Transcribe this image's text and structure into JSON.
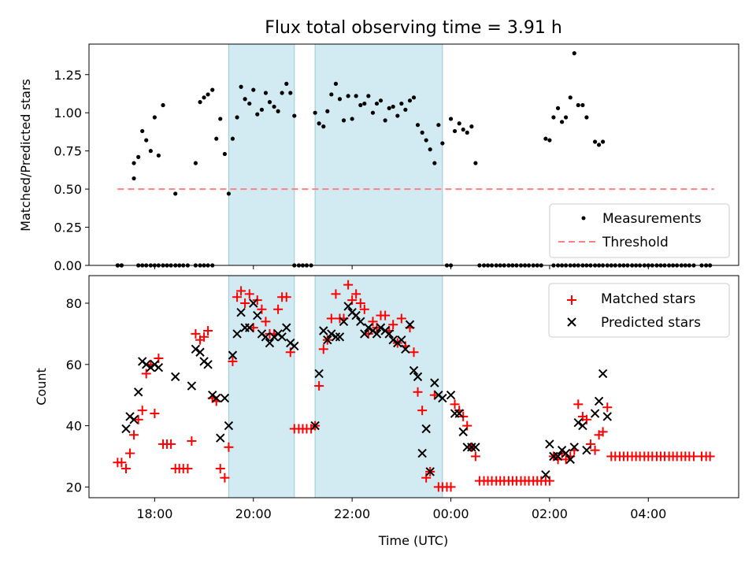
{
  "chart_data": [
    {
      "type": "scatter",
      "title": "Flux total observing time = 3.91 h",
      "xlabel": "",
      "ylabel": "Matched/Predicted stars",
      "xlim": [
        16.67,
        29.83
      ],
      "ylim": [
        0,
        1.45
      ],
      "x_ticks": [
        18,
        20,
        22,
        24,
        26,
        28
      ],
      "y_ticks": [
        0,
        0.25,
        0.5,
        0.75,
        1.0,
        1.25
      ],
      "y_tick_labels": [
        "0.00",
        "0.25",
        "0.50",
        "0.75",
        "1.00",
        "1.25"
      ],
      "shaded_regions": [
        [
          19.5,
          20.83
        ],
        [
          21.25,
          23.83
        ]
      ],
      "shade_color": "#add8e6",
      "threshold": {
        "name": "Threshold",
        "value": 0.5,
        "x_range": [
          17.25,
          29.33
        ],
        "color": "#ff8080"
      },
      "legend": [
        "Measurements",
        "Threshold"
      ],
      "legend_position": "lower-right",
      "series": [
        {
          "name": "Measurements",
          "color": "#000000",
          "x": [
            17.25,
            17.33,
            17.58,
            17.67,
            17.75,
            17.83,
            17.92,
            18.0,
            18.08,
            18.17,
            18.42,
            18.83,
            18.92,
            19.0,
            19.08,
            19.17,
            19.25,
            19.33,
            19.42,
            19.5,
            19.58,
            19.67,
            19.75,
            19.83,
            19.92,
            20.0,
            20.08,
            20.17,
            20.25,
            20.33,
            20.42,
            20.5,
            20.58,
            20.67,
            20.75,
            20.83,
            21.25,
            21.33,
            21.42,
            21.5,
            21.58,
            21.67,
            21.75,
            21.83,
            21.92,
            22.0,
            22.08,
            22.17,
            22.25,
            22.33,
            22.42,
            22.5,
            22.58,
            22.67,
            22.75,
            22.83,
            22.92,
            23.0,
            23.08,
            23.17,
            23.25,
            23.33,
            23.42,
            23.5,
            23.58,
            23.67,
            23.75,
            23.83,
            24.0,
            24.08,
            24.17,
            24.25,
            24.33,
            24.42,
            24.5,
            25.92,
            26.0,
            26.08,
            26.17,
            26.25,
            26.33,
            26.42,
            26.5,
            26.58,
            26.67,
            26.75,
            26.92,
            27.0,
            27.08,
            17.58,
            17.67,
            17.75,
            17.83,
            17.92,
            18.0,
            18.08,
            18.17,
            18.42,
            18.83,
            18.92,
            19.0,
            19.08,
            19.17
          ],
          "y": [
            0,
            0,
            0.67,
            0.71,
            0.88,
            0.82,
            0.75,
            0.97,
            0.72,
            1.05,
            0.47,
            0.67,
            1.07,
            1.1,
            1.12,
            1.15,
            0.83,
            0.96,
            0.73,
            0.47,
            0.83,
            0.97,
            1.17,
            1.09,
            1.06,
            1.15,
            0.99,
            1.02,
            1.13,
            1.07,
            1.04,
            1.01,
            1.13,
            1.19,
            1.13,
            0.98,
            1.0,
            0.93,
            0.91,
            1.01,
            1.12,
            1.19,
            1.09,
            0.95,
            1.11,
            0.96,
            1.11,
            1.05,
            1.06,
            1.11,
            1.0,
            1.06,
            1.08,
            0.95,
            1.03,
            1.04,
            0.98,
            1.06,
            1.02,
            1.08,
            1.1,
            0.92,
            0.87,
            0.82,
            0.76,
            0.67,
            0.92,
            0.8,
            0.96,
            0.88,
            0.93,
            0.89,
            0.87,
            0.91,
            0.67,
            0.83,
            0.82,
            0.97,
            1.03,
            0.94,
            0.97,
            1.1,
            1.39,
            1.05,
            1.05,
            0.97,
            0.81,
            0.79,
            0.81,
            0.57,
            0,
            0,
            0,
            0,
            0,
            0,
            0,
            0,
            0,
            0,
            0,
            0,
            0
          ],
          "zero_points_x": [
            17.25,
            17.33,
            18.25,
            18.33,
            18.5,
            18.58,
            18.67,
            20.83,
            20.92,
            21.0,
            21.08,
            21.17,
            23.92,
            24.0,
            24.58,
            24.67,
            24.75,
            24.83,
            24.92,
            25.0,
            25.08,
            25.17,
            25.25,
            25.33,
            25.42,
            25.5,
            25.58,
            25.67,
            25.75,
            25.83,
            26.08,
            26.17,
            26.25,
            26.33,
            26.42,
            26.5,
            26.58,
            26.67,
            26.75,
            26.83,
            26.92,
            27.0,
            27.08,
            27.17,
            27.25,
            27.33,
            27.42,
            27.5,
            27.58,
            27.67,
            27.75,
            27.83,
            27.92,
            28.0,
            28.08,
            28.17,
            28.25,
            28.33,
            28.42,
            28.5,
            28.58,
            28.67,
            28.75,
            28.83,
            28.92,
            29.08,
            29.17,
            29.25
          ]
        }
      ]
    },
    {
      "type": "scatter",
      "title": "",
      "xlabel": "Time (UTC)",
      "ylabel": "Count",
      "xlim": [
        16.67,
        29.83
      ],
      "ylim": [
        16.5,
        89
      ],
      "x_ticks": [
        18,
        20,
        22,
        24,
        26,
        28
      ],
      "x_tick_labels": [
        "18:00",
        "20:00",
        "22:00",
        "00:00",
        "02:00",
        "04:00"
      ],
      "y_ticks": [
        20,
        40,
        60,
        80
      ],
      "y_tick_labels": [
        "20",
        "40",
        "60",
        "80"
      ],
      "shaded_regions": [
        [
          19.5,
          20.83
        ],
        [
          21.25,
          23.83
        ]
      ],
      "legend": [
        "Matched stars",
        "Predicted stars"
      ],
      "legend_position": "upper-right",
      "series": [
        {
          "name": "Matched stars",
          "marker": "plus",
          "color": "#ff0000",
          "x": [
            17.25,
            17.33,
            17.42,
            17.5,
            17.58,
            17.67,
            17.75,
            17.83,
            17.92,
            18.0,
            18.08,
            18.17,
            18.25,
            18.33,
            18.42,
            18.5,
            18.58,
            18.67,
            18.75,
            18.83,
            18.92,
            19.0,
            19.08,
            19.17,
            19.25,
            19.33,
            19.42,
            19.5,
            19.58,
            19.67,
            19.75,
            19.83,
            19.92,
            20.0,
            20.08,
            20.17,
            20.25,
            20.33,
            20.42,
            20.5,
            20.58,
            20.67,
            20.75,
            20.83,
            20.92,
            21.0,
            21.08,
            21.17,
            21.25,
            21.33,
            21.42,
            21.5,
            21.58,
            21.67,
            21.75,
            21.83,
            21.92,
            22.0,
            22.08,
            22.17,
            22.25,
            22.33,
            22.42,
            22.5,
            22.58,
            22.67,
            22.75,
            22.83,
            22.92,
            23.0,
            23.08,
            23.17,
            23.25,
            23.33,
            23.42,
            23.5,
            23.58,
            23.67,
            23.75,
            23.83,
            23.92,
            24.0,
            24.08,
            24.17,
            24.25,
            24.33,
            24.42,
            24.5,
            24.58,
            24.67,
            24.75,
            24.83,
            24.92,
            25.0,
            25.08,
            25.17,
            25.25,
            25.33,
            25.42,
            25.5,
            25.58,
            25.67,
            25.75,
            25.83,
            25.92,
            26.0,
            26.08,
            26.17,
            26.25,
            26.33,
            26.42,
            26.5,
            26.58,
            26.67,
            26.75,
            26.83,
            26.92,
            27.0,
            27.08,
            27.17,
            27.25,
            27.33,
            27.42,
            27.5,
            27.58,
            27.67,
            27.75,
            27.83,
            27.92,
            28.0,
            28.08,
            28.17,
            28.25,
            28.33,
            28.42,
            28.5,
            28.58,
            28.67,
            28.75,
            28.83,
            28.92,
            29.08,
            29.17,
            29.25
          ],
          "y": [
            28,
            28,
            26,
            31,
            37,
            42,
            45,
            57,
            60,
            44,
            62,
            34,
            34,
            34,
            26,
            26,
            26,
            26,
            35,
            70,
            68,
            69,
            71,
            49,
            48,
            26,
            23,
            33,
            61,
            82,
            84,
            80,
            83,
            72,
            81,
            78,
            74,
            70,
            70,
            78,
            82,
            82,
            64,
            39,
            39,
            39,
            39,
            39,
            40,
            53,
            65,
            68,
            75,
            83,
            75,
            75,
            86,
            81,
            83,
            80,
            78,
            70,
            74,
            72,
            76,
            76,
            71,
            73,
            67,
            75,
            66,
            72,
            64,
            51,
            45,
            23,
            25,
            50,
            20,
            20,
            20,
            20,
            47,
            45,
            43,
            40,
            33,
            30,
            22,
            22,
            22,
            22,
            22,
            22,
            22,
            22,
            22,
            22,
            22,
            22,
            22,
            22,
            22,
            22,
            22,
            22,
            30,
            29,
            31,
            29,
            30,
            32,
            47,
            43,
            42,
            34,
            32,
            37,
            38,
            46,
            30,
            30,
            30,
            30,
            30,
            30,
            30,
            30,
            30,
            30,
            30,
            30,
            30,
            30,
            30,
            30,
            30,
            30,
            30,
            30,
            30,
            30,
            30,
            30
          ]
        },
        {
          "name": "Predicted stars",
          "marker": "x",
          "color": "#000000",
          "x": [
            17.42,
            17.5,
            17.58,
            17.67,
            17.75,
            17.83,
            17.92,
            18.0,
            18.08,
            18.42,
            18.75,
            18.83,
            18.92,
            19.0,
            19.08,
            19.17,
            19.25,
            19.33,
            19.42,
            19.5,
            19.58,
            19.67,
            19.75,
            19.83,
            19.92,
            20.0,
            20.08,
            20.17,
            20.25,
            20.33,
            20.42,
            20.5,
            20.58,
            20.67,
            20.75,
            20.83,
            21.25,
            21.33,
            21.42,
            21.5,
            21.58,
            21.67,
            21.75,
            21.83,
            21.92,
            22.0,
            22.08,
            22.17,
            22.25,
            22.33,
            22.42,
            22.5,
            22.58,
            22.67,
            22.75,
            22.83,
            22.92,
            23.0,
            23.08,
            23.17,
            23.25,
            23.33,
            23.42,
            23.5,
            23.58,
            23.67,
            23.75,
            23.83,
            24.0,
            24.08,
            24.17,
            24.25,
            24.33,
            24.42,
            24.5,
            25.92,
            26.0,
            26.08,
            26.17,
            26.25,
            26.33,
            26.42,
            26.5,
            26.58,
            26.67,
            26.75,
            26.92,
            27.0,
            27.08,
            27.17
          ],
          "y": [
            39,
            43,
            42,
            51,
            61,
            60,
            59,
            60,
            59,
            56,
            53,
            65,
            64,
            61,
            60,
            50,
            49,
            36,
            49,
            40,
            63,
            70,
            77,
            72,
            72,
            80,
            76,
            70,
            69,
            67,
            69,
            70,
            69,
            72,
            67,
            66,
            40,
            57,
            71,
            68,
            70,
            69,
            69,
            74,
            79,
            77,
            76,
            74,
            70,
            72,
            71,
            70,
            72,
            71,
            70,
            68,
            67,
            68,
            65,
            73,
            58,
            56,
            31,
            39,
            25,
            54,
            50,
            49,
            50,
            44,
            44,
            38,
            33,
            33,
            33,
            24,
            34,
            30,
            30,
            32,
            31,
            29,
            33,
            41,
            40,
            32,
            44,
            48,
            57,
            43
          ]
        }
      ]
    }
  ]
}
